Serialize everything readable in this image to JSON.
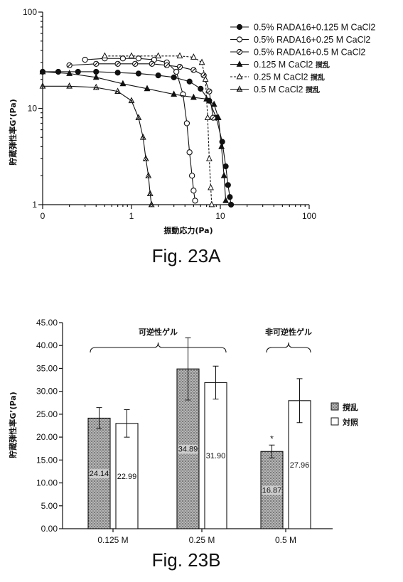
{
  "chart_data": [
    {
      "type": "line",
      "caption": "Fig. 23A",
      "ylabel": "貯蔵弾性率G’(Pa)",
      "xlabel": "振動応力(Pa)",
      "x_scale": "log",
      "y_scale": "log",
      "xlim": [
        0.1,
        100
      ],
      "ylim": [
        1,
        100
      ],
      "x_tick_labels": [
        "0",
        "1",
        "10",
        "100"
      ],
      "y_tick_labels": [
        "1",
        "10",
        "100"
      ],
      "legend_position": "top-right",
      "series": [
        {
          "name": "0.5% RADA16+0.125 M CaCl2",
          "marker": "filled-circle",
          "line": "solid",
          "x": [
            0.1,
            0.15,
            0.25,
            0.4,
            0.7,
            1.2,
            2,
            3,
            4.5,
            6,
            7.5,
            9,
            10.5,
            11.5,
            12.2,
            12.8,
            13.2
          ],
          "y": [
            24,
            24,
            24,
            24,
            23.5,
            23,
            22,
            21,
            19,
            16,
            12,
            8,
            4.5,
            2.5,
            1.6,
            1.2,
            1.0
          ]
        },
        {
          "name": "0.5% RADA16+0.25 M CaCl2",
          "marker": "open-circle",
          "line": "solid",
          "x": [
            0.3,
            0.5,
            0.8,
            1.2,
            1.8,
            2.5,
            3.2,
            3.8,
            4.2,
            4.5,
            4.8,
            5.0,
            5.2
          ],
          "y": [
            32,
            33,
            33,
            33,
            32,
            30,
            24,
            14,
            7,
            3.5,
            2,
            1.4,
            1.1
          ]
        },
        {
          "name": "0.5% RADA16+0.5 M CaCl2",
          "marker": "slashed-circle",
          "line": "solid",
          "x": [
            0.2,
            0.4,
            0.7,
            1.1,
            1.7,
            2.5,
            3.5,
            5,
            6.5,
            7.5,
            8.3
          ],
          "y": [
            28,
            29,
            29,
            29,
            29,
            28,
            27,
            25,
            22,
            15,
            8
          ]
        },
        {
          "name": "0.125 M CaCl2 撹乱",
          "marker": "filled-triangle",
          "line": "solid",
          "x": [
            0.1,
            0.2,
            0.4,
            0.8,
            1.5,
            3,
            5,
            7,
            8.5,
            9.5,
            10.3,
            11,
            11.5
          ],
          "y": [
            24,
            23,
            21,
            18,
            16,
            14,
            13,
            12.5,
            11,
            8,
            4,
            2,
            1.1
          ]
        },
        {
          "name": "0.25 M CaCl2 撹乱",
          "marker": "open-triangle",
          "line": "dashed",
          "x": [
            0.5,
            1,
            2,
            3.5,
            5,
            6.2,
            6.8,
            7.2,
            7.5,
            7.8,
            8.0
          ],
          "y": [
            35,
            35,
            35,
            35,
            34,
            30,
            20,
            8,
            3,
            1.5,
            1.0
          ]
        },
        {
          "name": "0.5 M CaCl2 撹乱",
          "marker": "hatched-triangle",
          "line": "solid",
          "x": [
            0.1,
            0.2,
            0.4,
            0.7,
            1.0,
            1.2,
            1.35,
            1.45,
            1.55,
            1.62,
            1.68
          ],
          "y": [
            17,
            17,
            16.5,
            15,
            12,
            8,
            5,
            3,
            2,
            1.3,
            1.0
          ]
        }
      ]
    },
    {
      "type": "bar",
      "caption": "Fig. 23B",
      "ylabel": "貯蔵弾性率G’(Pa)",
      "categories": [
        "0.125 M",
        "0.25 M",
        "0.5 M"
      ],
      "ylim": [
        0,
        45
      ],
      "y_tick_labels": [
        "0.00",
        "5.00",
        "10.00",
        "15.00",
        "20.00",
        "25.00",
        "30.00",
        "35.00",
        "40.00",
        "45.00"
      ],
      "legend_position": "right",
      "series": [
        {
          "name": "撹乱",
          "pattern": "stipple",
          "values": [
            24.14,
            34.89,
            16.87
          ],
          "errors": [
            2.3,
            6.8,
            1.4
          ],
          "labels": [
            "24.14",
            "34.89",
            "16.87"
          ]
        },
        {
          "name": "対照",
          "pattern": "white",
          "values": [
            22.99,
            31.9,
            27.96
          ],
          "errors": [
            3.0,
            3.6,
            4.8
          ],
          "labels": [
            "22.99",
            "31.90",
            "27.96"
          ]
        }
      ],
      "group_annotations": [
        "可逆性ゲル",
        "非可逆性ゲル"
      ],
      "significance_marker": "*"
    }
  ]
}
